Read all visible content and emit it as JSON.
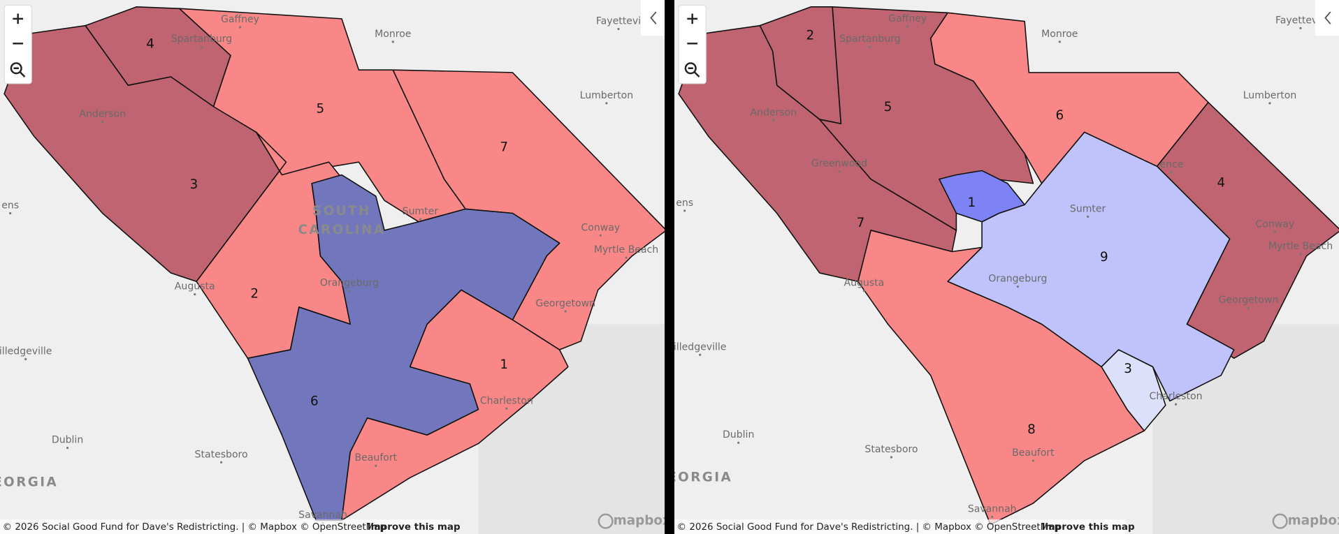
{
  "maps": [
    {
      "district_labels": [
        "4",
        "5",
        "7",
        "3",
        "2",
        "6",
        "1"
      ],
      "cities": [
        "Gaffney",
        "Spartanburg",
        "Monroe",
        "Fayettevi",
        "Lumberton",
        "Anderson",
        "ens",
        "Sumter",
        "Conway",
        "Myrtle Beach",
        "Augusta",
        "Orangeburg",
        "Georgetown",
        "illedgeville",
        "Charleston",
        "Dublin",
        "Statesboro",
        "Beaufort",
        "Savannah"
      ],
      "regions": [
        "SOUTH",
        "CAROLINA",
        "EORGIA"
      ],
      "attribution": "© 2026 Social Good Fund for Dave's Redistricting. | © Mapbox © OpenStreetMap",
      "improve": "Improve this map",
      "logo": "mapbox"
    },
    {
      "district_labels": [
        "2",
        "5",
        "6",
        "4",
        "1",
        "7",
        "9",
        "3",
        "8"
      ],
      "cities": [
        "Gaffney",
        "Spartanburg",
        "Monroe",
        "Fayettevill",
        "Lumberton",
        "Anderson",
        "Greenwood",
        "ens",
        "Sumter",
        "ence",
        "Conway",
        "Myrtle Beach",
        "Augusta",
        "Orangeburg",
        "Georgetown",
        "illedgeville",
        "Charleston",
        "Dublin",
        "Statesboro",
        "Beaufort",
        "Savannah"
      ],
      "regions": [
        "EORGIA"
      ],
      "attribution": "© 2026 Social Good Fund for Dave's Redistricting. | © Mapbox © OpenStreetMap",
      "improve": "Improve this map",
      "logo": "mapbox"
    }
  ]
}
